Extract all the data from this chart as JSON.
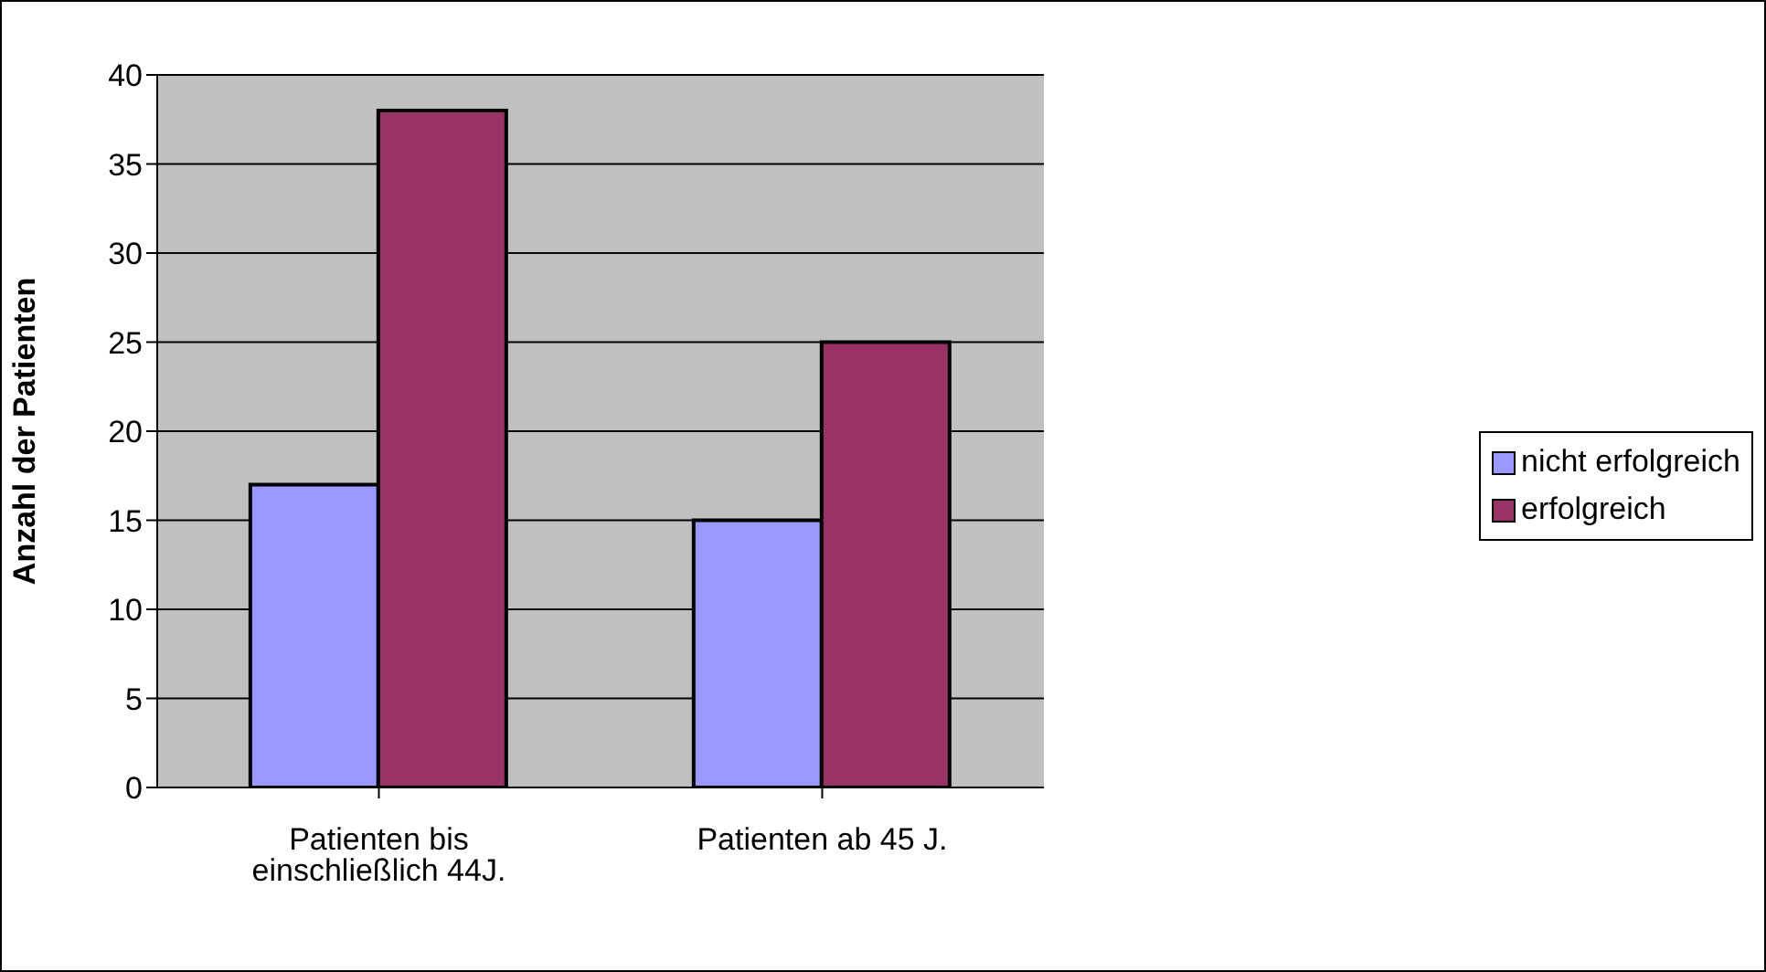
{
  "chart_data": {
    "type": "bar",
    "ylabel": "Anzahl der Patienten",
    "categories": [
      "Patienten bis einschließlich 44J.",
      "Patienten ab 45 J."
    ],
    "series": [
      {
        "name": "nicht erfolgreich",
        "color": "#9999ff",
        "values": [
          17,
          15
        ]
      },
      {
        "name": "erfolgreich",
        "color": "#993366",
        "values": [
          38,
          25
        ]
      }
    ],
    "ylim": [
      0,
      40
    ],
    "yticks": [
      0,
      5,
      10,
      15,
      20,
      25,
      30,
      35,
      40
    ],
    "grid": "y",
    "legend": "right"
  }
}
